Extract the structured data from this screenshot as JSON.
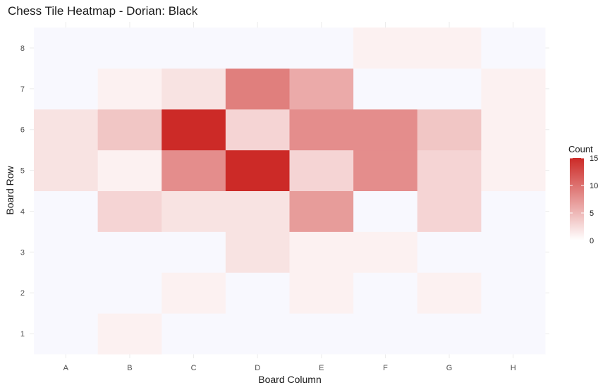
{
  "chart_data": {
    "type": "heatmap",
    "title": "Chess Tile Heatmap - Dorian: Black",
    "xlabel": "Board Column",
    "ylabel": "Board Row",
    "x_categories": [
      "A",
      "B",
      "C",
      "D",
      "E",
      "F",
      "G",
      "H"
    ],
    "y_categories": [
      "1",
      "2",
      "3",
      "4",
      "5",
      "6",
      "7",
      "8"
    ],
    "values": [
      [
        0,
        1,
        0,
        0,
        0,
        0,
        0,
        0
      ],
      [
        0,
        0,
        1,
        0,
        1,
        0,
        1,
        0
      ],
      [
        0,
        0,
        0,
        2,
        1,
        1,
        0,
        0
      ],
      [
        0,
        3,
        2,
        2,
        7,
        0,
        3,
        0
      ],
      [
        2,
        1,
        8,
        15,
        3,
        8,
        3,
        1
      ],
      [
        2,
        4,
        15,
        3,
        8,
        8,
        4,
        1
      ],
      [
        0,
        1,
        2,
        9,
        6,
        0,
        0,
        1
      ],
      [
        0,
        0,
        0,
        0,
        0,
        1,
        1,
        0
      ]
    ],
    "legend": {
      "title": "Count",
      "ticks": [
        0,
        5,
        10,
        15
      ],
      "range": [
        0,
        15
      ],
      "low_color": "#ffffff",
      "high_color": "#cc2a27",
      "position": "right"
    },
    "zero_color": "#f8f8fe",
    "grid": true
  }
}
